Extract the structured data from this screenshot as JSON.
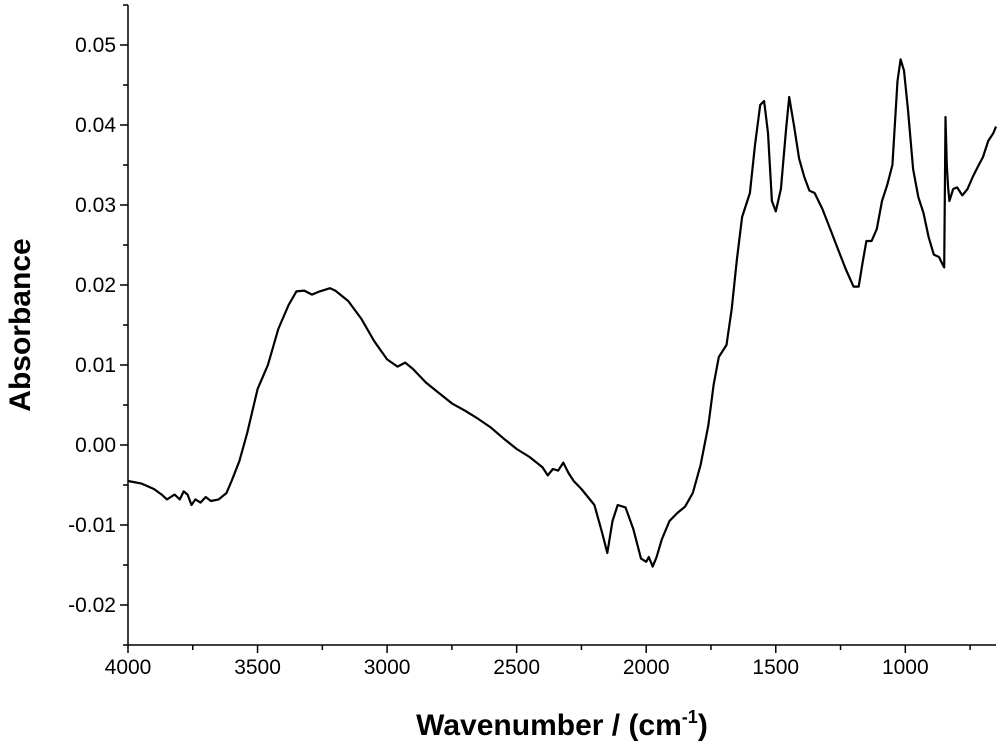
{
  "chart_data": {
    "type": "line",
    "xlabel_main": "Wavenumber / (cm",
    "xlabel_sup": "-1",
    "xlabel_close": ")",
    "ylabel": "Absorbance",
    "xlim": [
      4000,
      650
    ],
    "x_reversed": true,
    "ylim": [
      -0.025,
      0.055
    ],
    "x_ticks": [
      {
        "value": 4000,
        "label": "4000"
      },
      {
        "value": 3500,
        "label": "3500"
      },
      {
        "value": 3000,
        "label": "3000"
      },
      {
        "value": 2500,
        "label": "2500"
      },
      {
        "value": 2000,
        "label": "2000"
      },
      {
        "value": 1500,
        "label": "1500"
      },
      {
        "value": 1000,
        "label": "1000"
      }
    ],
    "y_ticks": [
      {
        "value": 0.05,
        "label": "0.05"
      },
      {
        "value": 0.04,
        "label": "0.04"
      },
      {
        "value": 0.03,
        "label": "0.03"
      },
      {
        "value": 0.02,
        "label": "0.02"
      },
      {
        "value": 0.01,
        "label": "0.01"
      },
      {
        "value": 0.0,
        "label": "0.00"
      },
      {
        "value": -0.01,
        "label": "-0.01"
      },
      {
        "value": -0.02,
        "label": "-0.02"
      }
    ],
    "grid": false,
    "legend": "none",
    "series": [
      {
        "color": "#000000",
        "points": [
          [
            4000,
            -0.0045
          ],
          [
            3950,
            -0.0048
          ],
          [
            3900,
            -0.0055
          ],
          [
            3870,
            -0.0062
          ],
          [
            3850,
            -0.0068
          ],
          [
            3820,
            -0.0062
          ],
          [
            3800,
            -0.0068
          ],
          [
            3785,
            -0.0058
          ],
          [
            3770,
            -0.0062
          ],
          [
            3755,
            -0.0075
          ],
          [
            3740,
            -0.0068
          ],
          [
            3720,
            -0.0072
          ],
          [
            3700,
            -0.0065
          ],
          [
            3680,
            -0.007
          ],
          [
            3650,
            -0.0068
          ],
          [
            3620,
            -0.006
          ],
          [
            3600,
            -0.0045
          ],
          [
            3570,
            -0.002
          ],
          [
            3540,
            0.0015
          ],
          [
            3500,
            0.007
          ],
          [
            3460,
            0.01
          ],
          [
            3420,
            0.0145
          ],
          [
            3380,
            0.0175
          ],
          [
            3350,
            0.0192
          ],
          [
            3320,
            0.0193
          ],
          [
            3290,
            0.0188
          ],
          [
            3260,
            0.0192
          ],
          [
            3220,
            0.0196
          ],
          [
            3200,
            0.0193
          ],
          [
            3150,
            0.018
          ],
          [
            3100,
            0.0158
          ],
          [
            3050,
            0.013
          ],
          [
            3000,
            0.0107
          ],
          [
            2960,
            0.0098
          ],
          [
            2930,
            0.0103
          ],
          [
            2900,
            0.0095
          ],
          [
            2850,
            0.0078
          ],
          [
            2800,
            0.0065
          ],
          [
            2750,
            0.0052
          ],
          [
            2700,
            0.0043
          ],
          [
            2650,
            0.0033
          ],
          [
            2600,
            0.0022
          ],
          [
            2550,
            0.0008
          ],
          [
            2500,
            -0.0005
          ],
          [
            2450,
            -0.0015
          ],
          [
            2400,
            -0.0028
          ],
          [
            2380,
            -0.0038
          ],
          [
            2360,
            -0.003
          ],
          [
            2340,
            -0.0032
          ],
          [
            2320,
            -0.0022
          ],
          [
            2300,
            -0.0035
          ],
          [
            2280,
            -0.0045
          ],
          [
            2250,
            -0.0055
          ],
          [
            2200,
            -0.0075
          ],
          [
            2170,
            -0.011
          ],
          [
            2150,
            -0.0135
          ],
          [
            2130,
            -0.0095
          ],
          [
            2110,
            -0.0075
          ],
          [
            2080,
            -0.0078
          ],
          [
            2050,
            -0.0105
          ],
          [
            2020,
            -0.0142
          ],
          [
            2000,
            -0.0146
          ],
          [
            1990,
            -0.014
          ],
          [
            1975,
            -0.0152
          ],
          [
            1960,
            -0.014
          ],
          [
            1940,
            -0.0118
          ],
          [
            1910,
            -0.0095
          ],
          [
            1880,
            -0.0085
          ],
          [
            1850,
            -0.0077
          ],
          [
            1820,
            -0.006
          ],
          [
            1790,
            -0.0025
          ],
          [
            1760,
            0.0025
          ],
          [
            1740,
            0.0075
          ],
          [
            1720,
            0.011
          ],
          [
            1690,
            0.0125
          ],
          [
            1670,
            0.017
          ],
          [
            1650,
            0.0232
          ],
          [
            1630,
            0.0285
          ],
          [
            1610,
            0.0305
          ],
          [
            1600,
            0.0315
          ],
          [
            1580,
            0.0375
          ],
          [
            1560,
            0.0425
          ],
          [
            1545,
            0.043
          ],
          [
            1530,
            0.039
          ],
          [
            1515,
            0.0305
          ],
          [
            1500,
            0.0292
          ],
          [
            1480,
            0.032
          ],
          [
            1460,
            0.0395
          ],
          [
            1448,
            0.0435
          ],
          [
            1430,
            0.04
          ],
          [
            1410,
            0.0358
          ],
          [
            1390,
            0.0335
          ],
          [
            1370,
            0.0318
          ],
          [
            1350,
            0.0315
          ],
          [
            1320,
            0.0295
          ],
          [
            1290,
            0.027
          ],
          [
            1260,
            0.0245
          ],
          [
            1230,
            0.022
          ],
          [
            1200,
            0.0198
          ],
          [
            1180,
            0.0198
          ],
          [
            1165,
            0.0228
          ],
          [
            1150,
            0.0255
          ],
          [
            1130,
            0.0255
          ],
          [
            1110,
            0.027
          ],
          [
            1090,
            0.0305
          ],
          [
            1070,
            0.0325
          ],
          [
            1050,
            0.035
          ],
          [
            1030,
            0.0455
          ],
          [
            1018,
            0.0482
          ],
          [
            1005,
            0.0468
          ],
          [
            990,
            0.042
          ],
          [
            970,
            0.0345
          ],
          [
            950,
            0.031
          ],
          [
            930,
            0.029
          ],
          [
            910,
            0.026
          ],
          [
            890,
            0.0238
          ],
          [
            870,
            0.0235
          ],
          [
            855,
            0.0225
          ],
          [
            850,
            0.0222
          ],
          [
            845,
            0.041
          ],
          [
            840,
            0.035
          ],
          [
            835,
            0.0322
          ],
          [
            830,
            0.0305
          ],
          [
            815,
            0.032
          ],
          [
            800,
            0.0322
          ],
          [
            780,
            0.0312
          ],
          [
            760,
            0.032
          ],
          [
            740,
            0.0335
          ],
          [
            720,
            0.0348
          ],
          [
            700,
            0.036
          ],
          [
            680,
            0.038
          ],
          [
            660,
            0.039
          ],
          [
            650,
            0.0398
          ]
        ]
      }
    ]
  }
}
